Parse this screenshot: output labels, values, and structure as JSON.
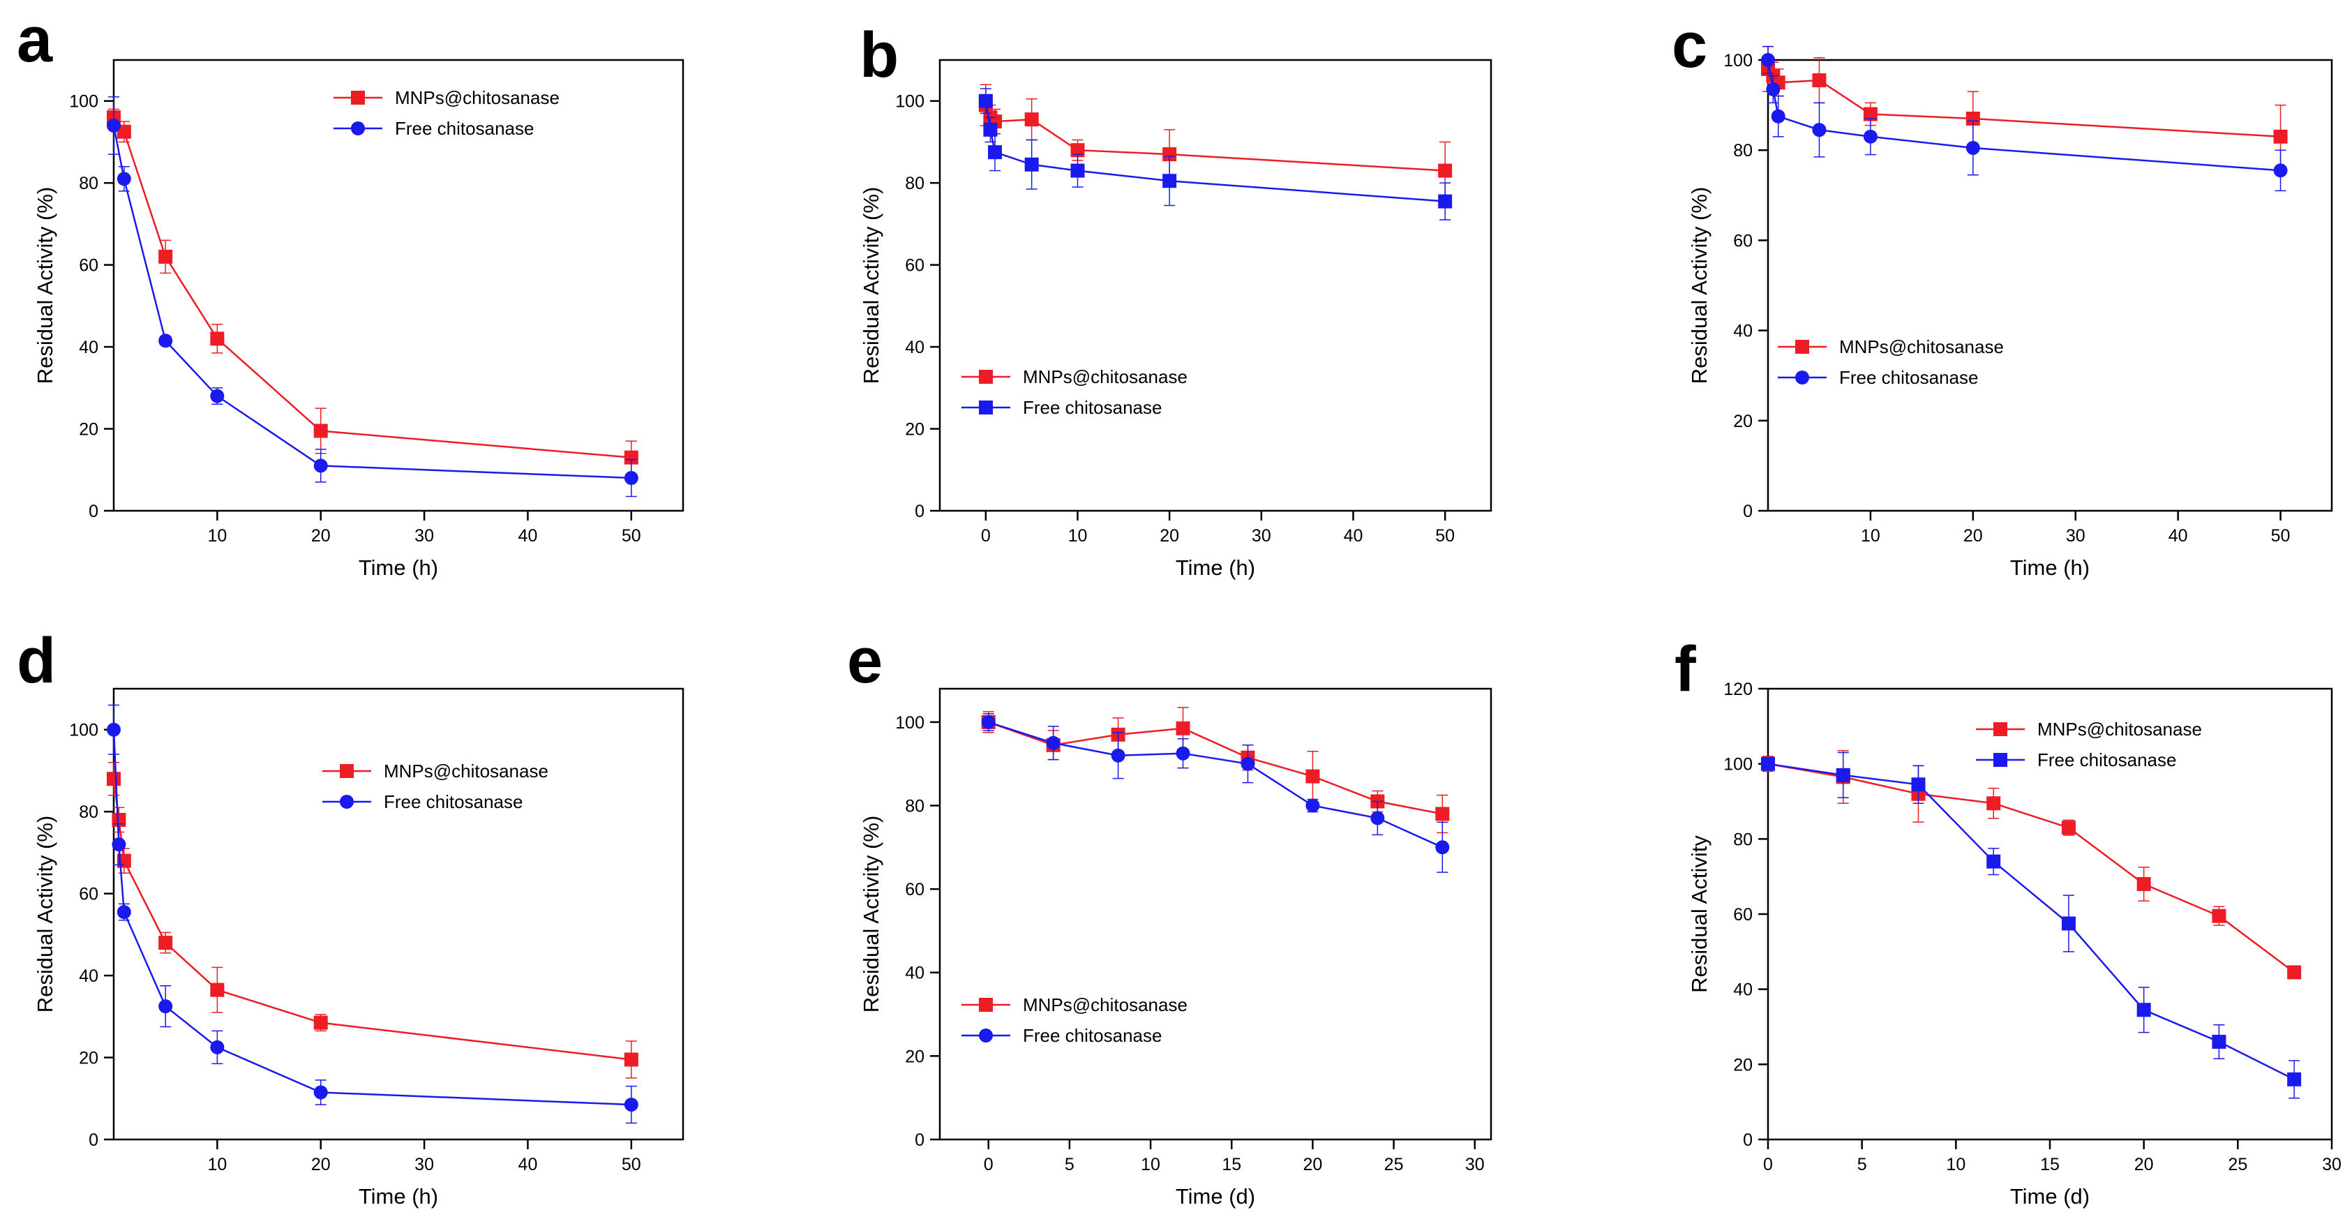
{
  "colors": {
    "red": "#ee1c25",
    "blue": "#1a1aee",
    "axis": "#000000"
  },
  "chart_data": [
    {
      "panel": "a",
      "type": "line",
      "xlabel": "Time (h)",
      "ylabel": "Residual Activity (%)",
      "xlim": [
        0,
        55
      ],
      "ylim": [
        0,
        110
      ],
      "xticks": [
        10,
        20,
        30,
        40,
        50
      ],
      "yticks": [
        0,
        20,
        40,
        60,
        80,
        100
      ],
      "legend_position": "top-center",
      "series": [
        {
          "name": "MNPs@chitosanase",
          "color": "red",
          "marker": "square",
          "x": [
            0,
            1,
            5,
            10,
            20,
            50
          ],
          "y": [
            96,
            92.5,
            62,
            42,
            19.5,
            13
          ],
          "err": [
            2,
            2.5,
            4,
            3.5,
            5.5,
            4
          ]
        },
        {
          "name": "Free chitosanase",
          "color": "blue",
          "marker": "circle",
          "x": [
            0,
            1,
            5,
            10,
            20,
            50
          ],
          "y": [
            94,
            81,
            41.5,
            28,
            11,
            8
          ],
          "err": [
            7,
            3,
            1,
            2,
            4,
            4.5
          ]
        }
      ]
    },
    {
      "panel": "b",
      "type": "line",
      "xlabel": "Time (h)",
      "ylabel": "Residual Activity (%)",
      "xlim": [
        -5,
        55
      ],
      "ylim": [
        0,
        110
      ],
      "xticks": [
        0,
        10,
        20,
        30,
        40,
        50
      ],
      "yticks": [
        0,
        20,
        40,
        60,
        80,
        100
      ],
      "legend_position": "middle-left",
      "series": [
        {
          "name": "MNPs@chitosanase",
          "color": "red",
          "marker": "square",
          "x": [
            0,
            0.5,
            1,
            5,
            10,
            20,
            50
          ],
          "y": [
            99,
            96,
            95,
            95.5,
            88,
            87,
            83
          ],
          "err": [
            5,
            3,
            3,
            5,
            2.5,
            6,
            7
          ]
        },
        {
          "name": "Free chitosanase",
          "color": "blue",
          "marker": "square",
          "x": [
            0,
            0.5,
            1,
            5,
            10,
            20,
            50
          ],
          "y": [
            100,
            93,
            87.5,
            84.5,
            83,
            80.5,
            75.5
          ],
          "err": [
            3,
            3,
            4.5,
            6,
            4,
            6,
            4.5
          ]
        }
      ]
    },
    {
      "panel": "c",
      "type": "line",
      "xlabel": "Time (h)",
      "ylabel": "Residual Activity (%)",
      "xlim": [
        0,
        55
      ],
      "ylim": [
        0,
        100
      ],
      "xticks": [
        10,
        20,
        30,
        40,
        50
      ],
      "yticks": [
        0,
        20,
        40,
        60,
        80,
        100
      ],
      "legend_position": "middle-left",
      "series": [
        {
          "name": "MNPs@chitosanase",
          "color": "red",
          "marker": "square",
          "x": [
            0,
            0.5,
            1,
            5,
            10,
            20,
            50
          ],
          "y": [
            98,
            96.5,
            95,
            95.5,
            88,
            87,
            83
          ],
          "err": [
            5,
            3,
            3,
            5,
            2.5,
            6,
            7
          ]
        },
        {
          "name": "Free chitosanase",
          "color": "blue",
          "marker": "circle",
          "x": [
            0,
            0.5,
            1,
            5,
            10,
            20,
            50
          ],
          "y": [
            100,
            93.5,
            87.5,
            84.5,
            83,
            80.5,
            75.5
          ],
          "err": [
            3,
            3,
            4.5,
            6,
            4,
            6,
            4.5
          ]
        }
      ]
    },
    {
      "panel": "d",
      "type": "line",
      "xlabel": "Time (h)",
      "ylabel": "Residual Activity (%)",
      "xlim": [
        0,
        55
      ],
      "ylim": [
        0,
        110
      ],
      "xticks": [
        10,
        20,
        30,
        40,
        50
      ],
      "yticks": [
        0,
        20,
        40,
        60,
        80,
        100
      ],
      "legend_position": "top-center",
      "series": [
        {
          "name": "MNPs@chitosanase",
          "color": "red",
          "marker": "square",
          "x": [
            0,
            0.5,
            1,
            5,
            10,
            20,
            50
          ],
          "y": [
            88,
            78,
            68,
            48,
            36.5,
            28.5,
            19.5
          ],
          "err": [
            4,
            3,
            3,
            2.5,
            5.5,
            2,
            4.5
          ]
        },
        {
          "name": "Free chitosanase",
          "color": "blue",
          "marker": "circle",
          "x": [
            0,
            0.5,
            1,
            5,
            10,
            20,
            50
          ],
          "y": [
            100,
            72,
            55.5,
            32.5,
            22.5,
            11.5,
            8.5
          ],
          "err": [
            6,
            5,
            2,
            5,
            4,
            3,
            4.5
          ]
        }
      ]
    },
    {
      "panel": "e",
      "type": "line",
      "xlabel": "Time (d)",
      "ylabel": "Residual Activity (%)",
      "xlim": [
        -3,
        31
      ],
      "ylim": [
        0,
        108
      ],
      "xticks": [
        0,
        5,
        10,
        15,
        20,
        25,
        30
      ],
      "yticks": [
        0,
        20,
        40,
        60,
        80,
        100
      ],
      "legend_position": "bottom-left",
      "series": [
        {
          "name": "MNPs@chitosanase",
          "color": "red",
          "marker": "square",
          "x": [
            0,
            4,
            8,
            12,
            16,
            20,
            24,
            28
          ],
          "y": [
            100,
            94.5,
            97,
            98.5,
            91.5,
            87,
            81,
            78
          ],
          "err": [
            2.5,
            3.5,
            4,
            5,
            3,
            6,
            2.5,
            4.5
          ]
        },
        {
          "name": "Free chitosanase",
          "color": "blue",
          "marker": "circle",
          "x": [
            0,
            4,
            8,
            12,
            16,
            20,
            24,
            28
          ],
          "y": [
            100,
            95,
            92,
            92.5,
            90,
            80,
            77,
            70
          ],
          "err": [
            2,
            4,
            5.5,
            3.5,
            4.5,
            1.5,
            4,
            6
          ]
        }
      ]
    },
    {
      "panel": "f",
      "type": "line",
      "xlabel": "Time (d)",
      "ylabel": "Residual Activity",
      "xlim": [
        0,
        30
      ],
      "ylim": [
        0,
        120
      ],
      "xticks": [
        0,
        5,
        10,
        15,
        20,
        25,
        30
      ],
      "yticks": [
        0,
        20,
        40,
        60,
        80,
        100,
        120
      ],
      "legend_position": "top-center",
      "series": [
        {
          "name": "MNPs@chitosanase",
          "color": "red",
          "marker": "square",
          "x": [
            0,
            4,
            8,
            12,
            16,
            20,
            24,
            28
          ],
          "y": [
            100,
            96.5,
            92,
            89.5,
            83,
            68,
            59.5,
            44.5
          ],
          "err": [
            2,
            7,
            7.5,
            4,
            2,
            4.5,
            2.5,
            1
          ]
        },
        {
          "name": "Free chitosanase",
          "color": "blue",
          "marker": "square",
          "x": [
            0,
            4,
            8,
            12,
            16,
            20,
            24,
            28
          ],
          "y": [
            100,
            97,
            94.5,
            74,
            57.5,
            34.5,
            26,
            16
          ],
          "err": [
            1.5,
            6,
            5,
            3.5,
            7.5,
            6,
            4.5,
            5
          ]
        }
      ]
    }
  ]
}
